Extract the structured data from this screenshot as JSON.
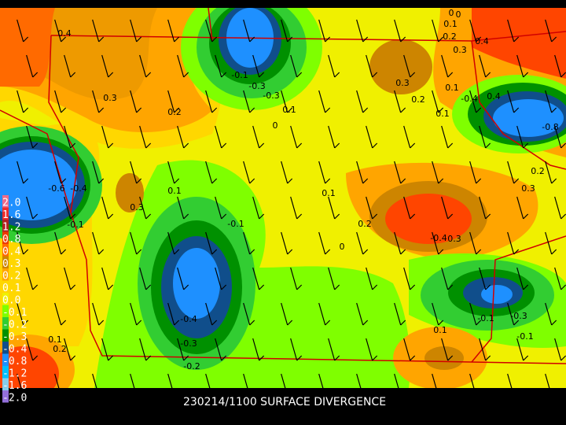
{
  "caption": "230214/1100 SURFACE DIVERGENCE",
  "legend": [
    {
      "label": "2.0",
      "color": "#ee6a8a"
    },
    {
      "label": "1.6",
      "color": "#ee2c2c"
    },
    {
      "label": "1.2",
      "color": "#b22222"
    },
    {
      "label": "0.8",
      "color": "#ee3b00"
    },
    {
      "label": "0.4",
      "color": "#ff6a00"
    },
    {
      "label": "0.3",
      "color": "#cd8500"
    },
    {
      "label": "0.2",
      "color": "#ffa500"
    },
    {
      "label": "0.1",
      "color": "#ffd700"
    },
    {
      "label": "0.0",
      "color": "#f0f000"
    },
    {
      "label": "-0.1",
      "color": "#7fff00"
    },
    {
      "label": "-0.2",
      "color": "#32cd32"
    },
    {
      "label": "-0.3",
      "color": "#009000"
    },
    {
      "label": "-0.4",
      "color": "#104e8b"
    },
    {
      "label": "-0.8",
      "color": "#1e90ff"
    },
    {
      "label": "-1.2",
      "color": "#00bfff"
    },
    {
      "label": "-1.6",
      "color": "#87ceeb"
    },
    {
      "label": "-2.0",
      "color": "#9370db"
    }
  ],
  "contour_labels": [
    "0.4",
    "0.3",
    "0.2",
    "-0.1",
    "-0.3",
    "-0.3",
    "0.1",
    "0",
    "0",
    "0.1",
    "0.1",
    "0.2",
    "0.3",
    "0.4",
    "0.3",
    "0.2",
    "0.1",
    "-0.4",
    "-0.8",
    "0.4",
    "0.3",
    "-0.6",
    "-0.4",
    "-0.1",
    "0",
    "0.1",
    "-0.1",
    "0.1",
    "0.2",
    "-0.4",
    "0.3",
    "0",
    "-0.4",
    "-0.3",
    "-0.2",
    "0.1",
    "-0.1",
    "-0.3",
    "0.1",
    "0.2",
    "0.3",
    "-0.1",
    "0.2"
  ]
}
